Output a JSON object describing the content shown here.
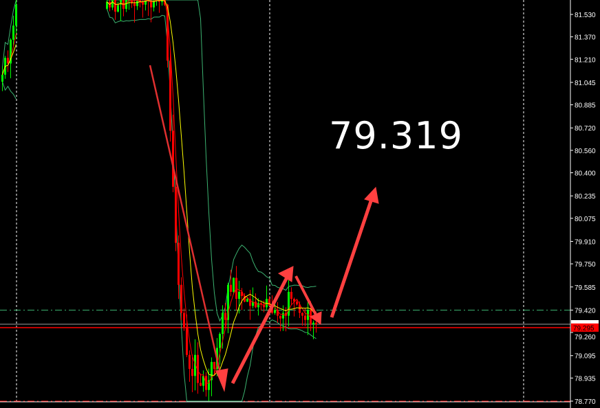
{
  "annotation_text": "79.319",
  "chart_data": {
    "type": "candlestick",
    "title": "",
    "y_axis": {
      "range": [
        78.72,
        81.62
      ],
      "tick_labels": [
        "81.530",
        "81.370",
        "81.210",
        "81.045",
        "80.885",
        "80.720",
        "80.560",
        "80.400",
        "80.235",
        "80.075",
        "79.910",
        "79.750",
        "79.585",
        "79.420",
        "79.260",
        "79.095",
        "78.935",
        "78.770"
      ]
    },
    "grid": "vertical dashed",
    "current_price": {
      "label": "79.295",
      "value": 79.295,
      "color": "#ff0000"
    },
    "ask_price": {
      "label": "79.319",
      "value": 79.319,
      "color": "#a0a0a0"
    },
    "levels": [
      {
        "value": 79.42,
        "style": "dash-dot",
        "color": "#3cb371"
      },
      {
        "value": 78.77,
        "style": "dash-dot",
        "color": "#ff0000"
      }
    ],
    "closes": [
      81.1,
      81.22,
      81.18,
      81.35,
      81.45,
      81.6,
      null,
      null,
      null,
      null,
      null,
      null,
      null,
      null,
      null,
      null,
      null,
      null,
      null,
      null,
      null,
      null,
      null,
      null,
      null,
      null,
      null,
      null,
      null,
      null,
      null,
      null,
      null,
      null,
      null,
      null,
      null,
      null,
      81.62,
      81.58,
      81.66,
      81.55,
      81.6,
      81.64,
      81.57,
      81.63,
      81.68,
      81.61,
      81.59,
      81.65,
      81.62,
      81.6,
      81.66,
      81.63,
      81.58,
      81.64,
      81.67,
      81.62,
      81.65,
      81.6,
      81.2,
      80.7,
      80.3,
      79.9,
      79.6,
      79.4,
      79.3,
      79.1,
      79.0,
      78.95,
      79.1,
      78.9,
      78.88,
      78.95,
      78.85,
      78.92,
      79.05,
      79.0,
      79.15,
      79.25,
      79.4,
      79.35,
      79.6,
      79.55,
      79.65,
      79.5,
      79.55,
      79.52,
      79.48,
      79.5,
      79.45,
      79.48,
      79.44,
      79.47,
      79.46,
      79.44,
      79.5,
      79.45,
      79.4,
      79.42,
      79.38,
      79.36,
      79.4,
      79.38,
      79.55,
      79.5,
      79.48,
      79.46,
      79.4,
      79.38,
      79.35,
      79.42,
      79.32,
      79.33,
      79.319
    ],
    "indicators": [
      "moving-average-fast (red)",
      "moving-average-slow (yellow)",
      "bollinger-bands (green)"
    ],
    "colors": {
      "bull": "#00ff00",
      "bear": "#ff0000",
      "ma_fast": "#ff0000",
      "ma_slow": "#ffff00",
      "bands": "#3cb371",
      "arrows": "#ff4040",
      "axis": "#ffffff"
    }
  }
}
